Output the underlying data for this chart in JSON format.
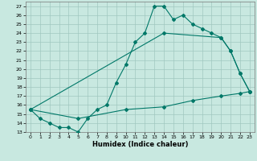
{
  "xlabel": "Humidex (Indice chaleur)",
  "xlim": [
    -0.5,
    23.5
  ],
  "ylim": [
    13,
    27.5
  ],
  "xticks": [
    0,
    1,
    2,
    3,
    4,
    5,
    6,
    7,
    8,
    9,
    10,
    11,
    12,
    13,
    14,
    15,
    16,
    17,
    18,
    19,
    20,
    21,
    22,
    23
  ],
  "yticks": [
    13,
    14,
    15,
    16,
    17,
    18,
    19,
    20,
    21,
    22,
    23,
    24,
    25,
    26,
    27
  ],
  "bg_color": "#c8e8e0",
  "grid_color": "#a0c8c0",
  "line_color": "#007868",
  "line1_x": [
    0,
    1,
    2,
    3,
    4,
    5,
    6,
    7,
    8,
    9,
    10,
    11,
    12,
    13,
    14,
    15,
    16,
    17,
    18,
    19,
    20,
    21,
    22,
    23
  ],
  "line1_y": [
    15.5,
    14.5,
    14.0,
    13.5,
    13.5,
    13.0,
    14.5,
    15.5,
    16.0,
    18.5,
    20.5,
    23.0,
    24.0,
    27.0,
    27.0,
    25.5,
    26.0,
    25.0,
    24.5,
    24.0,
    23.5,
    22.0,
    19.5,
    17.5
  ],
  "line2_x": [
    0,
    14,
    20,
    21,
    22,
    23
  ],
  "line2_y": [
    15.5,
    24.0,
    23.5,
    22.0,
    19.5,
    17.5
  ],
  "line3_x": [
    0,
    5,
    10,
    14,
    17,
    20,
    22,
    23
  ],
  "line3_y": [
    15.5,
    14.5,
    15.5,
    15.8,
    16.5,
    17.0,
    17.3,
    17.5
  ]
}
